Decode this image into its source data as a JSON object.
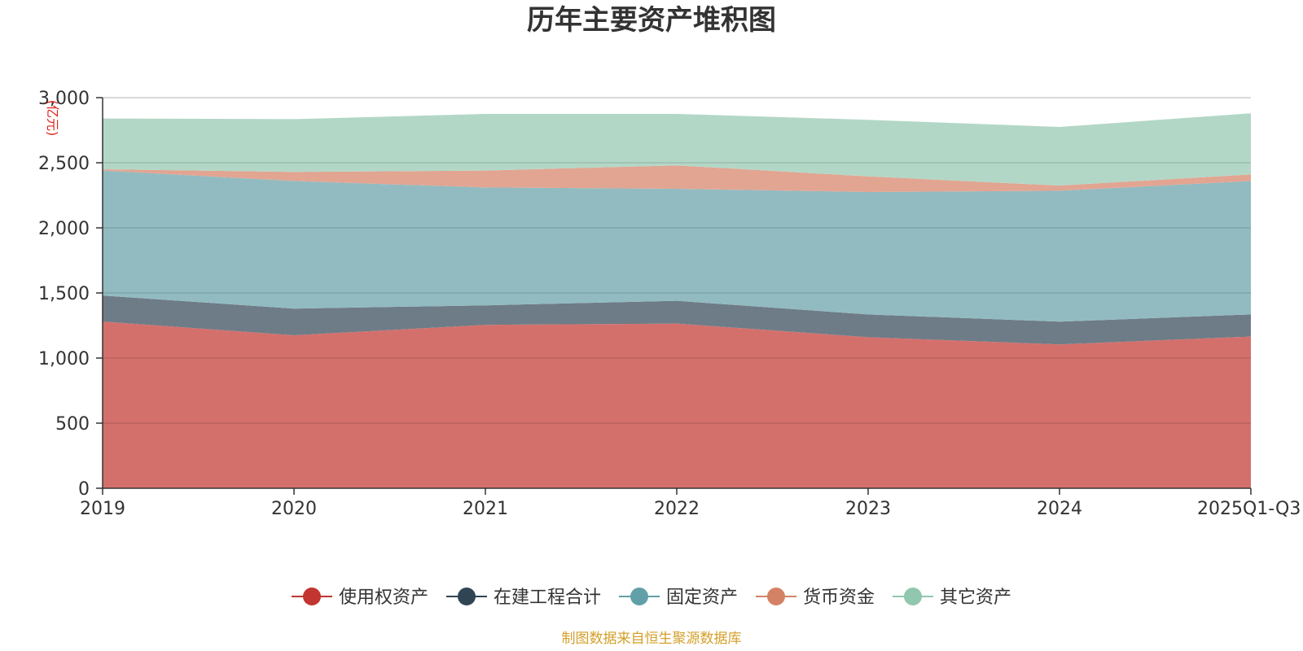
{
  "chart_data": {
    "type": "area",
    "stacked": true,
    "title": "历年主要资产堆积图",
    "unit": "(亿元)",
    "source": "制图数据来自恒生聚源数据库",
    "categories": [
      "2019",
      "2020",
      "2021",
      "2022",
      "2023",
      "2024",
      "2025Q1-Q3"
    ],
    "ylim": [
      0,
      3000
    ],
    "yticks": [
      0,
      500,
      1000,
      1500,
      2000,
      2500,
      3000
    ],
    "ytick_labels": [
      "0",
      "500",
      "1,000",
      "1,500",
      "2,000",
      "2,500",
      "3,000"
    ],
    "grid": true,
    "legend_position": "bottom",
    "series": [
      {
        "name": "使用权资产",
        "color": "#c23531",
        "fill": "#d4706c",
        "values": [
          1280,
          1175,
          1255,
          1265,
          1160,
          1105,
          1165
        ]
      },
      {
        "name": "在建工程合计",
        "color": "#2f4554",
        "fill": "#6e7c87",
        "values": [
          200,
          205,
          150,
          175,
          175,
          175,
          170
        ]
      },
      {
        "name": "固定资产",
        "color": "#61a0a8",
        "fill": "#92bbc1",
        "values": [
          960,
          980,
          905,
          860,
          940,
          1005,
          1025
        ]
      },
      {
        "name": "货币资金",
        "color": "#d48265",
        "fill": "#e1a592",
        "values": [
          10,
          70,
          130,
          180,
          120,
          40,
          50
        ]
      },
      {
        "name": "其它资产",
        "color": "#91c7ae",
        "fill": "#b3d7c6",
        "values": [
          390,
          405,
          435,
          395,
          435,
          450,
          470
        ]
      }
    ]
  }
}
